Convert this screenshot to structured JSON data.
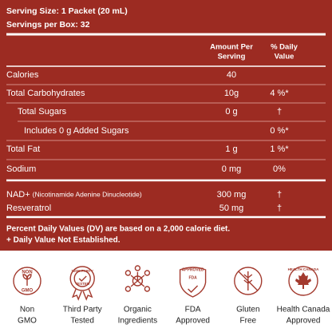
{
  "header": {
    "serving_size": "Serving Size: 1 Packet (20 mL)",
    "servings_per_box": "Servings per Box: 32"
  },
  "table": {
    "columns": {
      "amount_line1": "Amount Per",
      "amount_line2": "Serving",
      "dv_line1": "% Daily",
      "dv_line2": "Value"
    },
    "rows": [
      {
        "label": "Calories",
        "amount": "40",
        "daily_value": null
      },
      {
        "label": "Total Carbohydrates",
        "amount": "10g",
        "daily_value": "4 %*"
      },
      {
        "label": "Total Sugars",
        "amount": "0 g",
        "daily_value": "†"
      },
      {
        "label": "Includes 0 g Added Sugars",
        "amount": null,
        "daily_value": "0 %*"
      },
      {
        "label": "Total Fat",
        "amount": "1 g",
        "daily_value": "1 %*"
      },
      {
        "label": "Sodium",
        "amount": "0 mg",
        "daily_value": "0%"
      },
      {
        "label": "NAD+",
        "label_note": "(Nicotinamide Adenine Dinucleotide)",
        "amount": "300 mg",
        "daily_value": "†"
      },
      {
        "label": "Resveratrol",
        "amount": "50 mg",
        "daily_value": "†"
      }
    ]
  },
  "footnotes": [
    "Percent Daily Values (DV) are based on a 2,000 calorie diet.",
    "+ Daily Value Not Established."
  ],
  "badges": [
    {
      "icon_text": [
        "NON",
        "GMO"
      ],
      "label": [
        "Non",
        "GMO"
      ]
    },
    {
      "icon_text": [
        "100% PARTY",
        "TESTED"
      ],
      "label": [
        "Third Party",
        "Tested"
      ]
    },
    {
      "icon_text": [],
      "label": [
        "Organic",
        "Ingredients"
      ]
    },
    {
      "icon_text": [
        "APPROVED",
        "FDA"
      ],
      "label": [
        "FDA",
        "Approved"
      ]
    },
    {
      "icon_text": [],
      "label": [
        "Gluten",
        "Free"
      ]
    },
    {
      "icon_text": [
        "HEALTH CANADA"
      ],
      "label": [
        "Health Canada",
        "Approved"
      ]
    }
  ]
}
